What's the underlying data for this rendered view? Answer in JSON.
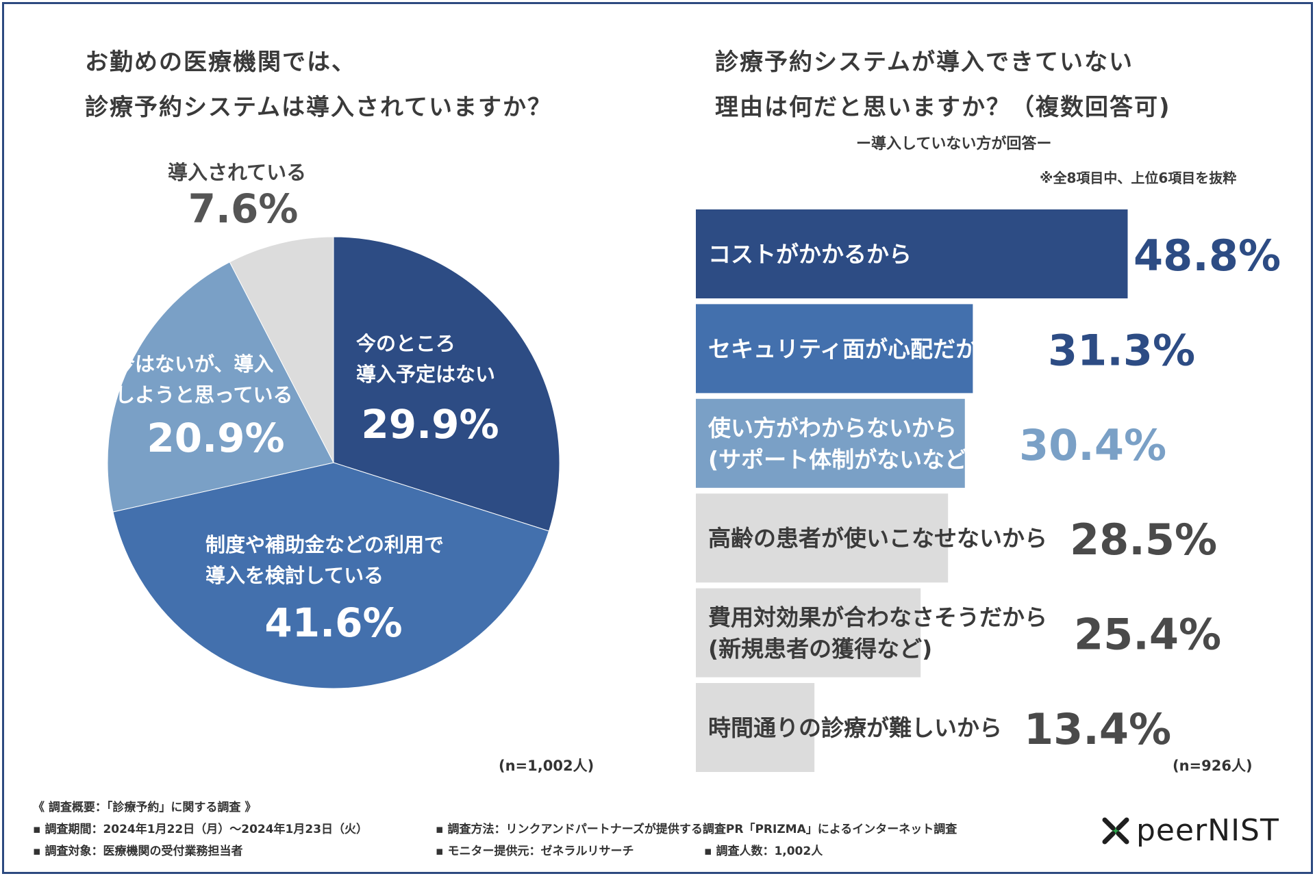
{
  "colors": {
    "navy": "#2d4c84",
    "mid": "#4370ad",
    "light": "#7aa0c6",
    "gray": "#dcdcdc",
    "text_dark": "#3a3a3a",
    "border": "#2d4a80",
    "logo_green": "#2aa84a"
  },
  "left_title": {
    "line1": "お勤めの医療機関では、",
    "line2": "診療予約システムは導入されていますか？"
  },
  "right_title": {
    "line1": "診療予約システムが導入できていない",
    "line2": "理由は何だと思いますか？（複数回答可)",
    "sub": "ー導入していない方が回答ー",
    "note": "※全8項目中、上位6項目を抜粋"
  },
  "left_n": "(n=1,002人)",
  "right_n": "(n=926人)",
  "chart_data": [
    {
      "type": "pie",
      "title": "お勤めの医療機関では、診療予約システムは導入されていますか？",
      "slices": [
        {
          "label_lines": [
            "今のところ",
            "導入予定はない"
          ],
          "value": 29.9,
          "display": "29.9%",
          "color": "#2d4c84"
        },
        {
          "label_lines": [
            "制度や補助金などの利用で",
            "導入を検討している"
          ],
          "value": 41.6,
          "display": "41.6%",
          "color": "#4370ad"
        },
        {
          "label_lines": [
            "今はないが、導入",
            "しようと思っている"
          ],
          "value": 20.9,
          "display": "20.9%",
          "color": "#7aa0c6"
        },
        {
          "label_lines": [
            "導入されている"
          ],
          "value": 7.6,
          "display": "7.6%",
          "color": "#dcdcdc"
        }
      ],
      "start": "12 o'clock, clockwise"
    },
    {
      "type": "bar",
      "orientation": "horizontal",
      "title": "診療予約システムが導入できていない理由は何だと思いますか？（複数回答可）",
      "xlim": [
        0,
        60
      ],
      "categories": [
        [
          "コストがかかるから"
        ],
        [
          "セキュリティ面が心配だから"
        ],
        [
          "使い方がわからないから",
          "(サポート体制がないなど)"
        ],
        [
          "高齢の患者が使いこなせないから"
        ],
        [
          "費用対効果が合わなさそうだから",
          "(新規患者の獲得など)"
        ],
        [
          "時間通りの診療が難しいから"
        ]
      ],
      "values": [
        48.8,
        31.3,
        30.4,
        28.5,
        25.4,
        13.4
      ],
      "display": [
        "48.8%",
        "31.3%",
        "30.4%",
        "28.5%",
        "25.4%",
        "13.4%"
      ],
      "bar_colors": [
        "#2d4c84",
        "#4370ad",
        "#7aa0c6",
        "#dcdcdc",
        "#dcdcdc",
        "#dcdcdc"
      ],
      "value_colors": [
        "#2d4c84",
        "#2d4c84",
        "#7aa0c6",
        "#4a4a4a",
        "#4a4a4a",
        "#4a4a4a"
      ],
      "label_colors": [
        "#ffffff",
        "#ffffff",
        "#ffffff",
        "#3a3a3a",
        "#3a3a3a",
        "#3a3a3a"
      ]
    }
  ],
  "footer": {
    "heading": "《 調査概要：「診療予約」に関する調査 》",
    "period": "▪ 調査期間：2024年1月22日（月）～2024年1月23日（火）",
    "method": "▪ 調査方法：リンクアンドパートナーズが提供する調査PR「PRIZMA」によるインターネット調査",
    "target": "▪ 調査対象：医療機関の受付業務担当者",
    "provider": "▪ モニター提供元：ゼネラルリサーチ",
    "count": "▪ 調査人数：1,002人"
  },
  "logo": {
    "text": "peerNIST",
    "icon": "x-cross-logo-icon"
  }
}
